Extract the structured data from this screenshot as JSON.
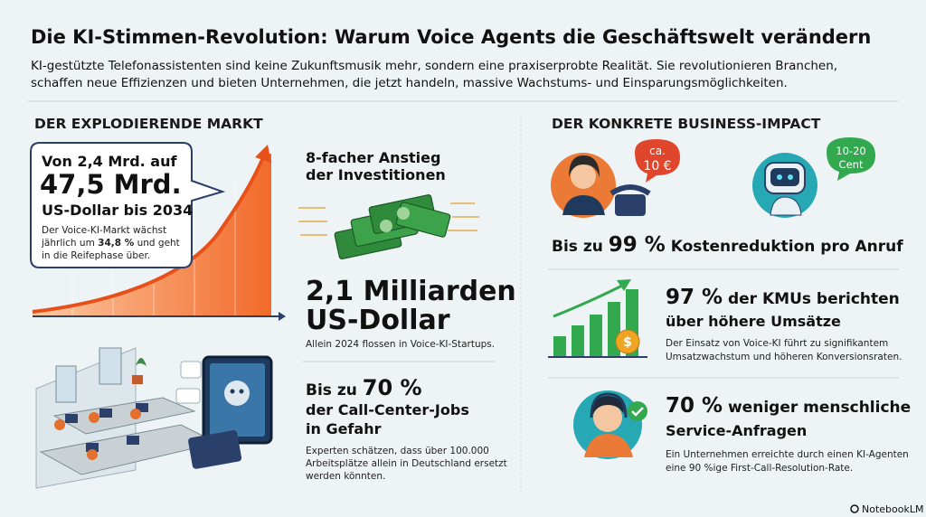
{
  "header": {
    "title": "Die KI-Stimmen-Revolution: Warum Voice Agents die Geschäftswelt verändern",
    "subtitle": [
      "KI-gestützte Telefonassistenten sind keine Zukunftsmusik mehr, sondern eine praxiserprobte Realität. Sie revolutionieren Branchen,",
      "schaffen neue Effizienzen und bieten Unternehmen, die jetzt handeln, massive Wachstums- und Einsparungsmöglichkeiten."
    ]
  },
  "market": {
    "heading": "DER EXPLODIERENDE MARKT",
    "callout": {
      "line1": "Von 2,4 Mrd. auf",
      "big": "47,5 Mrd.",
      "line3": "US-Dollar bis 2034",
      "note": [
        "Der Voice-KI-Markt wächst",
        "jährlich um ",
        "34,8 %",
        " und geht",
        "in die Reifephase über."
      ]
    },
    "investment": {
      "title": [
        "8-facher Anstieg",
        "der Investitionen"
      ],
      "big": [
        "2,1 Milliarden",
        "US-Dollar"
      ],
      "note": "Allein 2024 flossen in Voice-KI-Startups."
    },
    "jobs": {
      "lead": "Bis zu ",
      "big": "70 %",
      "title": [
        "der Call-Center-Jobs",
        "in Gefahr"
      ],
      "note": [
        "Experten schätzen, dass über 100.000",
        "Arbeitsplätze allein in Deutschland ersetzt",
        "werden könnten."
      ]
    }
  },
  "impact": {
    "heading": "DER KONKRETE BUSINESS-IMPACT",
    "cost": {
      "human_bubble": [
        "ca.",
        "10 €"
      ],
      "robot_bubble": [
        "10-20",
        "Cent"
      ],
      "lead": "Bis zu ",
      "big": "99 %",
      "rest": " Kostenreduktion pro Anruf"
    },
    "revenue": {
      "big": "97 %",
      "title": [
        " der KMUs berichten",
        "über höhere Umsätze"
      ],
      "note": [
        "Der Einsatz von Voice-KI führt zu signifikantem",
        "Umsatzwachstum und höheren Konversionsraten."
      ]
    },
    "service": {
      "big": "70 %",
      "title": [
        " weniger menschliche",
        "Service-Anfragen"
      ],
      "note": [
        "Ein Unternehmen erreichte durch einen KI-Agenten",
        "eine 90 %ige First-Call-Resolution-Rate."
      ]
    }
  },
  "footer": {
    "brand": "NotebookLM"
  }
}
